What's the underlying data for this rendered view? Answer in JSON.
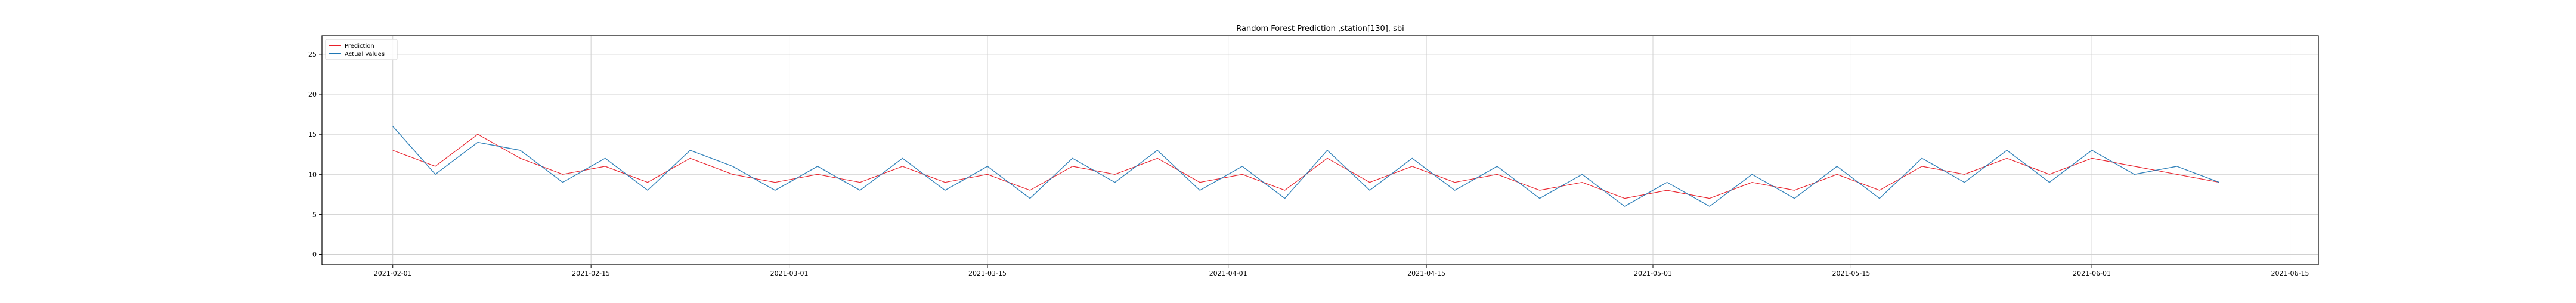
{
  "chart_data": {
    "type": "line",
    "title": "Random Forest Prediction ,station[130], sbi",
    "xlabel": "",
    "ylabel": "",
    "x_range": [
      "2021-01-27",
      "2021-06-17"
    ],
    "x_ticks": [
      "2021-02-01",
      "2021-02-15",
      "2021-03-01",
      "2021-03-15",
      "2021-04-01",
      "2021-04-15",
      "2021-05-01",
      "2021-05-15",
      "2021-06-01",
      "2021-06-15"
    ],
    "data_start": "2021-02-01",
    "data_end": "2021-06-10",
    "ylim": [
      -1.3,
      27.3
    ],
    "y_ticks": [
      0,
      5,
      10,
      15,
      20,
      25
    ],
    "grid": true,
    "legend_position": "top-left",
    "series": [
      {
        "name": "Prediction",
        "color": "#e8202a",
        "style": "line",
        "x": [
          "2021-02-01",
          "2021-02-04",
          "2021-02-07",
          "2021-02-10",
          "2021-02-13",
          "2021-02-16",
          "2021-02-19",
          "2021-02-22",
          "2021-02-25",
          "2021-02-28",
          "2021-03-03",
          "2021-03-06",
          "2021-03-09",
          "2021-03-12",
          "2021-03-15",
          "2021-03-18",
          "2021-03-21",
          "2021-03-24",
          "2021-03-27",
          "2021-03-30",
          "2021-04-02",
          "2021-04-05",
          "2021-04-08",
          "2021-04-11",
          "2021-04-14",
          "2021-04-17",
          "2021-04-20",
          "2021-04-23",
          "2021-04-26",
          "2021-04-29",
          "2021-05-02",
          "2021-05-05",
          "2021-05-08",
          "2021-05-11",
          "2021-05-14",
          "2021-05-17",
          "2021-05-20",
          "2021-05-23",
          "2021-05-26",
          "2021-05-29",
          "2021-06-01",
          "2021-06-04",
          "2021-06-07",
          "2021-06-10"
        ],
        "values": [
          13,
          11,
          15,
          12,
          10,
          11,
          9,
          12,
          10,
          9,
          10,
          9,
          11,
          9,
          10,
          8,
          11,
          10,
          12,
          9,
          10,
          8,
          12,
          9,
          11,
          9,
          10,
          8,
          9,
          7,
          8,
          7,
          9,
          8,
          10,
          8,
          11,
          10,
          12,
          10,
          12,
          11,
          10,
          9
        ]
      },
      {
        "name": "Actual values",
        "color": "#1f77b4",
        "style": "line",
        "x": [
          "2021-02-01",
          "2021-02-04",
          "2021-02-07",
          "2021-02-10",
          "2021-02-13",
          "2021-02-16",
          "2021-02-19",
          "2021-02-22",
          "2021-02-25",
          "2021-02-28",
          "2021-03-03",
          "2021-03-06",
          "2021-03-09",
          "2021-03-12",
          "2021-03-15",
          "2021-03-18",
          "2021-03-21",
          "2021-03-24",
          "2021-03-27",
          "2021-03-30",
          "2021-04-02",
          "2021-04-05",
          "2021-04-08",
          "2021-04-11",
          "2021-04-14",
          "2021-04-17",
          "2021-04-20",
          "2021-04-23",
          "2021-04-26",
          "2021-04-29",
          "2021-05-02",
          "2021-05-05",
          "2021-05-08",
          "2021-05-11",
          "2021-05-14",
          "2021-05-17",
          "2021-05-20",
          "2021-05-23",
          "2021-05-26",
          "2021-05-29",
          "2021-06-01",
          "2021-06-04",
          "2021-06-07",
          "2021-06-10"
        ],
        "values": [
          16,
          10,
          14,
          13,
          9,
          12,
          8,
          13,
          11,
          8,
          11,
          8,
          12,
          8,
          11,
          7,
          12,
          9,
          13,
          8,
          11,
          7,
          13,
          8,
          12,
          8,
          11,
          7,
          10,
          6,
          9,
          6,
          10,
          7,
          11,
          7,
          12,
          9,
          13,
          9,
          13,
          10,
          11,
          9
        ]
      }
    ]
  }
}
